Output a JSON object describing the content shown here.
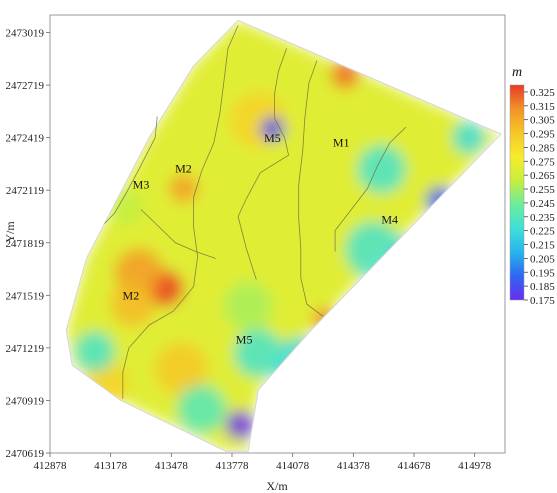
{
  "chart_data": {
    "type": "heatmap",
    "xlabel": "X/m",
    "ylabel": "Y/m",
    "xlim": [
      412878,
      415128
    ],
    "ylim": [
      2470619,
      2473119
    ],
    "x_ticks": [
      412878,
      413178,
      413478,
      413778,
      414078,
      414378,
      414678,
      414978
    ],
    "y_ticks": [
      2470619,
      2470919,
      2471219,
      2471519,
      2471819,
      2472119,
      2472419,
      2472719,
      2473019
    ],
    "colorbar": {
      "title": "m",
      "ticks": [
        0.325,
        0.315,
        0.305,
        0.295,
        0.285,
        0.275,
        0.265,
        0.255,
        0.245,
        0.235,
        0.225,
        0.215,
        0.205,
        0.195,
        0.185,
        0.175
      ],
      "range": [
        0.175,
        0.33
      ],
      "colors": [
        "#6a2cf0",
        "#2f66f2",
        "#27b4ec",
        "#3ee0d8",
        "#6cec9c",
        "#c8ee3c",
        "#f6ec2c",
        "#f6c628",
        "#f29228",
        "#ea3a26"
      ]
    },
    "zones": [
      {
        "label": "M1",
        "x": 414318,
        "y": 2472369
      },
      {
        "label": "M2",
        "x": 413538,
        "y": 2472219
      },
      {
        "label": "M2",
        "x": 413278,
        "y": 2471494
      },
      {
        "label": "M3",
        "x": 413328,
        "y": 2472129
      },
      {
        "label": "M4",
        "x": 414558,
        "y": 2471929
      },
      {
        "label": "M5",
        "x": 413978,
        "y": 2472394
      },
      {
        "label": "M5",
        "x": 413838,
        "y": 2471244
      }
    ],
    "region_boundary": [
      [
        413808,
        2473089
      ],
      [
        415108,
        2472439
      ],
      [
        414168,
        2471319
      ],
      [
        413908,
        2470979
      ],
      [
        413858,
        2470629
      ],
      [
        413748,
        2470629
      ],
      [
        413228,
        2470919
      ],
      [
        412988,
        2471119
      ],
      [
        412958,
        2471319
      ],
      [
        413058,
        2471729
      ],
      [
        413188,
        2472019
      ],
      [
        413368,
        2472419
      ],
      [
        413588,
        2472829
      ]
    ],
    "boundary_lines": [
      [
        [
          413808,
          2473059
        ],
        [
          413758,
          2472929
        ],
        [
          413738,
          2472739
        ],
        [
          413718,
          2472559
        ],
        [
          413688,
          2472389
        ],
        [
          413628,
          2472229
        ],
        [
          413588,
          2472079
        ],
        [
          413588,
          2471909
        ],
        [
          413608,
          2471739
        ],
        [
          413588,
          2471569
        ],
        [
          413488,
          2471429
        ],
        [
          413368,
          2471349
        ],
        [
          413268,
          2471219
        ],
        [
          413238,
          2471079
        ],
        [
          413238,
          2470929
        ]
      ],
      [
        [
          414048,
          2472929
        ],
        [
          414008,
          2472799
        ],
        [
          413988,
          2472669
        ],
        [
          413988,
          2472529
        ],
        [
          414038,
          2472419
        ],
        [
          414058,
          2472319
        ],
        [
          413918,
          2472219
        ],
        [
          413848,
          2472069
        ],
        [
          413808,
          2471969
        ],
        [
          413848,
          2471789
        ],
        [
          413898,
          2471609
        ]
      ],
      [
        [
          413408,
          2472539
        ],
        [
          413398,
          2472419
        ],
        [
          413318,
          2472239
        ],
        [
          413258,
          2472109
        ],
        [
          413198,
          2471989
        ],
        [
          413148,
          2471929
        ]
      ],
      [
        [
          413328,
          2472009
        ],
        [
          413418,
          2471909
        ],
        [
          413498,
          2471819
        ],
        [
          413598,
          2471769
        ],
        [
          413698,
          2471729
        ]
      ],
      [
        [
          414198,
          2472859
        ],
        [
          414158,
          2472729
        ],
        [
          414138,
          2472529
        ],
        [
          414128,
          2472349
        ],
        [
          414108,
          2472149
        ],
        [
          414108,
          2471959
        ],
        [
          414118,
          2471789
        ],
        [
          414118,
          2471619
        ],
        [
          414148,
          2471469
        ],
        [
          414228,
          2471399
        ]
      ],
      [
        [
          414638,
          2472479
        ],
        [
          414558,
          2472389
        ],
        [
          414498,
          2472259
        ],
        [
          414448,
          2472129
        ],
        [
          414368,
          2472009
        ],
        [
          414288,
          2471889
        ],
        [
          414288,
          2471769
        ]
      ]
    ],
    "hotspots": [
      {
        "x": 413448,
        "y": 2471559,
        "v": 0.33,
        "r": 90
      },
      {
        "x": 413318,
        "y": 2471649,
        "v": 0.31,
        "r": 120
      },
      {
        "x": 413288,
        "y": 2471469,
        "v": 0.3,
        "r": 110
      },
      {
        "x": 414338,
        "y": 2472779,
        "v": 0.32,
        "r": 70
      },
      {
        "x": 413908,
        "y": 2472519,
        "v": 0.29,
        "r": 140
      },
      {
        "x": 413538,
        "y": 2472129,
        "v": 0.31,
        "r": 70
      },
      {
        "x": 413528,
        "y": 2471099,
        "v": 0.295,
        "r": 130
      },
      {
        "x": 413158,
        "y": 2471019,
        "v": 0.29,
        "r": 110
      },
      {
        "x": 414238,
        "y": 2471379,
        "v": 0.315,
        "r": 60
      },
      {
        "x": 413978,
        "y": 2472469,
        "v": 0.185,
        "r": 60
      },
      {
        "x": 414808,
        "y": 2472059,
        "v": 0.19,
        "r": 70
      },
      {
        "x": 413818,
        "y": 2470779,
        "v": 0.175,
        "r": 70
      },
      {
        "x": 414518,
        "y": 2472239,
        "v": 0.23,
        "r": 120
      },
      {
        "x": 414478,
        "y": 2471779,
        "v": 0.23,
        "r": 140
      },
      {
        "x": 414948,
        "y": 2472419,
        "v": 0.225,
        "r": 80
      },
      {
        "x": 414118,
        "y": 2471119,
        "v": 0.225,
        "r": 140
      },
      {
        "x": 413908,
        "y": 2471189,
        "v": 0.23,
        "r": 120
      },
      {
        "x": 413098,
        "y": 2471199,
        "v": 0.23,
        "r": 100
      },
      {
        "x": 413628,
        "y": 2470869,
        "v": 0.235,
        "r": 120
      },
      {
        "x": 413258,
        "y": 2472019,
        "v": 0.26,
        "r": 90
      },
      {
        "x": 414658,
        "y": 2471739,
        "v": 0.215,
        "r": 90
      },
      {
        "x": 413858,
        "y": 2471459,
        "v": 0.255,
        "r": 120
      }
    ]
  }
}
